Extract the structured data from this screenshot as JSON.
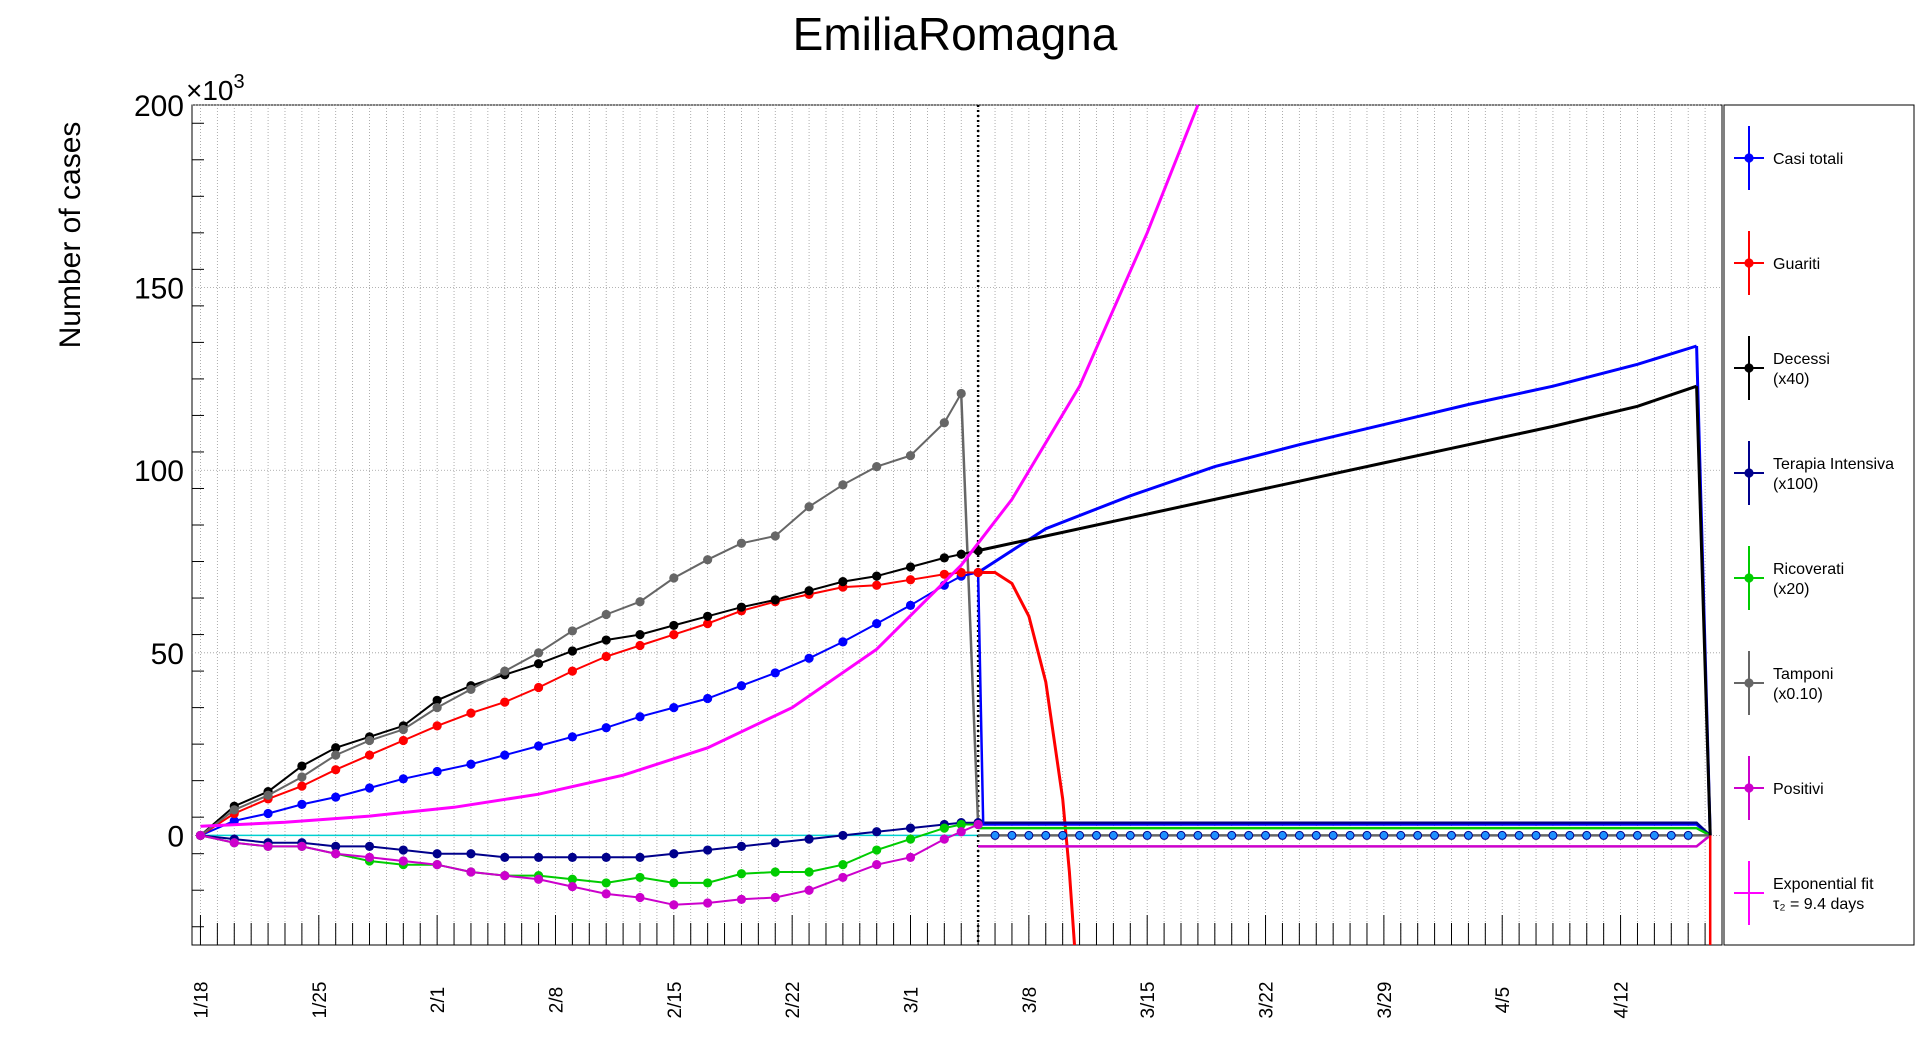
{
  "chart_data": {
    "type": "line",
    "title": "EmiliaRomagna",
    "ylabel": "Number of cases",
    "xlabel": "",
    "y_multiplier_label": "×10",
    "y_multiplier_exp": "3",
    "ylim": [
      -30,
      200
    ],
    "yticks": [
      0,
      50,
      100,
      150,
      200
    ],
    "ytick_labels": [
      "0",
      "50",
      "100",
      "150",
      "200"
    ],
    "xlim": [
      -0.5,
      90
    ],
    "xtick_days": [
      0,
      7,
      14,
      21,
      28,
      35,
      42,
      49,
      56,
      63,
      70,
      77,
      84
    ],
    "xtick_labels": [
      "1/18",
      "1/25",
      "2/1",
      "2/8",
      "2/15",
      "2/22",
      "3/1",
      "3/8",
      "3/15",
      "3/22",
      "3/29",
      "4/5",
      "4/12"
    ],
    "marker_line_day": 46,
    "grid": true,
    "legend_position": "right",
    "series": [
      {
        "name": "Casi totali",
        "color": "#0000ff",
        "style": "markers",
        "x": [
          0,
          2,
          4,
          6,
          8,
          10,
          12,
          14,
          16,
          18,
          20,
          22,
          24,
          26,
          28,
          30,
          32,
          34,
          36,
          38,
          40,
          42,
          44,
          45,
          46
        ],
        "y": [
          0,
          4,
          6,
          8.5,
          10.5,
          13,
          15.5,
          17.5,
          19.5,
          22,
          24.5,
          27,
          29.5,
          32.5,
          35,
          37.5,
          41,
          44.5,
          48.5,
          53,
          58,
          63,
          68.5,
          71,
          72
        ]
      },
      {
        "name": "Guariti",
        "color": "#ff0000",
        "style": "markers",
        "x": [
          0,
          2,
          4,
          6,
          8,
          10,
          12,
          14,
          16,
          18,
          20,
          22,
          24,
          26,
          28,
          30,
          32,
          34,
          36,
          38,
          40,
          42,
          44,
          45,
          46
        ],
        "y": [
          0,
          6,
          10,
          13.5,
          18,
          22,
          26,
          30,
          33.5,
          36.5,
          40.5,
          45,
          49,
          52,
          55,
          58,
          61.5,
          64,
          66,
          68,
          68.5,
          70,
          71.5,
          72,
          72
        ]
      },
      {
        "name": "Decessi",
        "name2": "(x40)",
        "color": "#000000",
        "style": "markers",
        "x": [
          0,
          2,
          4,
          6,
          8,
          10,
          12,
          14,
          16,
          18,
          20,
          22,
          24,
          26,
          28,
          30,
          32,
          34,
          36,
          38,
          40,
          42,
          44,
          45,
          46
        ],
        "y": [
          0,
          8,
          12,
          19,
          24,
          27,
          30,
          37,
          41,
          44,
          47,
          50.5,
          53.5,
          55,
          57.5,
          60,
          62.5,
          64.5,
          67,
          69.5,
          71,
          73.5,
          76,
          77,
          78
        ]
      },
      {
        "name": "Terapia Intensiva",
        "name2": "(x100)",
        "color": "#00008b",
        "style": "markers",
        "x": [
          0,
          2,
          4,
          6,
          8,
          10,
          12,
          14,
          16,
          18,
          20,
          22,
          24,
          26,
          28,
          30,
          32,
          34,
          36,
          38,
          40,
          42,
          44,
          45,
          46
        ],
        "y": [
          0,
          -1,
          -2,
          -2,
          -3,
          -3,
          -4,
          -5,
          -5,
          -6,
          -6,
          -6,
          -6,
          -6,
          -5,
          -4,
          -3,
          -2,
          -1,
          0,
          1,
          2,
          3,
          3.5,
          3.5
        ]
      },
      {
        "name": "Ricoverati",
        "name2": "(x20)",
        "color": "#00cc00",
        "style": "markers",
        "x": [
          0,
          2,
          4,
          6,
          8,
          10,
          12,
          14,
          16,
          18,
          20,
          22,
          24,
          26,
          28,
          30,
          32,
          34,
          36,
          38,
          40,
          42,
          44,
          45,
          46
        ],
        "y": [
          0,
          -2,
          -3,
          -3,
          -5,
          -7,
          -8,
          -8,
          -10,
          -11,
          -11,
          -12,
          -13,
          -11.5,
          -13,
          -13,
          -10.5,
          -10,
          -10,
          -8,
          -4,
          -1,
          2,
          3,
          3
        ]
      },
      {
        "name": "Tamponi",
        "name2": "(x0.10)",
        "color": "#666666",
        "style": "markers",
        "x": [
          0,
          2,
          4,
          6,
          8,
          10,
          12,
          14,
          16,
          18,
          20,
          22,
          24,
          26,
          28,
          30,
          32,
          34,
          36,
          38,
          40,
          42,
          44,
          45
        ],
        "y": [
          0,
          7,
          11,
          16,
          22,
          26,
          29,
          35,
          40,
          45,
          50,
          56,
          60.5,
          64,
          70.5,
          75.5,
          80,
          82,
          90,
          96,
          101,
          104,
          113,
          121
        ]
      },
      {
        "name": "Positivi",
        "color": "#cc00cc",
        "style": "markers",
        "x": [
          0,
          2,
          4,
          6,
          8,
          10,
          12,
          14,
          16,
          18,
          20,
          22,
          24,
          26,
          28,
          30,
          32,
          34,
          36,
          38,
          40,
          42,
          44,
          45,
          46
        ],
        "y": [
          0,
          -2,
          -3,
          -3,
          -5,
          -6,
          -7,
          -8,
          -10,
          -11,
          -12,
          -14,
          -16,
          -17,
          -19,
          -18.5,
          -17.5,
          -17,
          -15,
          -11.5,
          -8,
          -6,
          -1,
          1,
          3
        ]
      },
      {
        "name": "Exponential fit",
        "name2": "τ₂ = 9.4 days",
        "color": "#ff00ff",
        "style": "curve",
        "x": [
          0,
          5,
          10,
          15,
          20,
          25,
          30,
          35,
          40,
          45,
          48,
          52,
          56,
          59
        ],
        "y": [
          2.5,
          3.6,
          5.3,
          7.7,
          11.3,
          16.5,
          24,
          35,
          51,
          74,
          92,
          123,
          165,
          200
        ]
      }
    ],
    "post_lines": [
      {
        "name": "Casi totali",
        "color": "#0000ff",
        "x": [
          46,
          50,
          55,
          60,
          65,
          70,
          75,
          80,
          85,
          88.5
        ],
        "y": [
          72,
          84,
          93,
          101,
          107,
          112.5,
          118,
          123,
          129,
          134
        ]
      },
      {
        "name": "Decessi",
        "color": "#000000",
        "x": [
          46,
          50,
          55,
          60,
          65,
          70,
          75,
          80,
          85,
          88.5
        ],
        "y": [
          78,
          82,
          87,
          92,
          97,
          102,
          107,
          112,
          117.5,
          123
        ]
      },
      {
        "name": "Guariti",
        "color": "#ff0000",
        "x": [
          46,
          47,
          48,
          49,
          50,
          51,
          51.4,
          51.7
        ],
        "y": [
          72,
          72,
          69,
          60,
          42,
          10,
          -10,
          -30
        ]
      }
    ]
  },
  "legend": [
    {
      "label": "Casi totali",
      "label2": "",
      "color": "#0000ff",
      "icon": "marker-cross"
    },
    {
      "label": "Guariti",
      "label2": "",
      "color": "#ff0000",
      "icon": "marker-cross"
    },
    {
      "label": "Decessi",
      "label2": "(x40)",
      "color": "#000000",
      "icon": "marker-cross"
    },
    {
      "label": "Terapia Intensiva",
      "label2": "(x100)",
      "color": "#00008b",
      "icon": "marker-cross"
    },
    {
      "label": "Ricoverati",
      "label2": "(x20)",
      "color": "#00cc00",
      "icon": "marker-cross"
    },
    {
      "label": "Tamponi",
      "label2": "(x0.10)",
      "color": "#666666",
      "icon": "marker-cross"
    },
    {
      "label": "Positivi",
      "label2": "",
      "color": "#cc00cc",
      "icon": "marker-cross"
    },
    {
      "label": "Exponential fit",
      "label2": "τ₂ = 9.4 days",
      "color": "#ff00ff",
      "icon": "line-cross"
    }
  ]
}
